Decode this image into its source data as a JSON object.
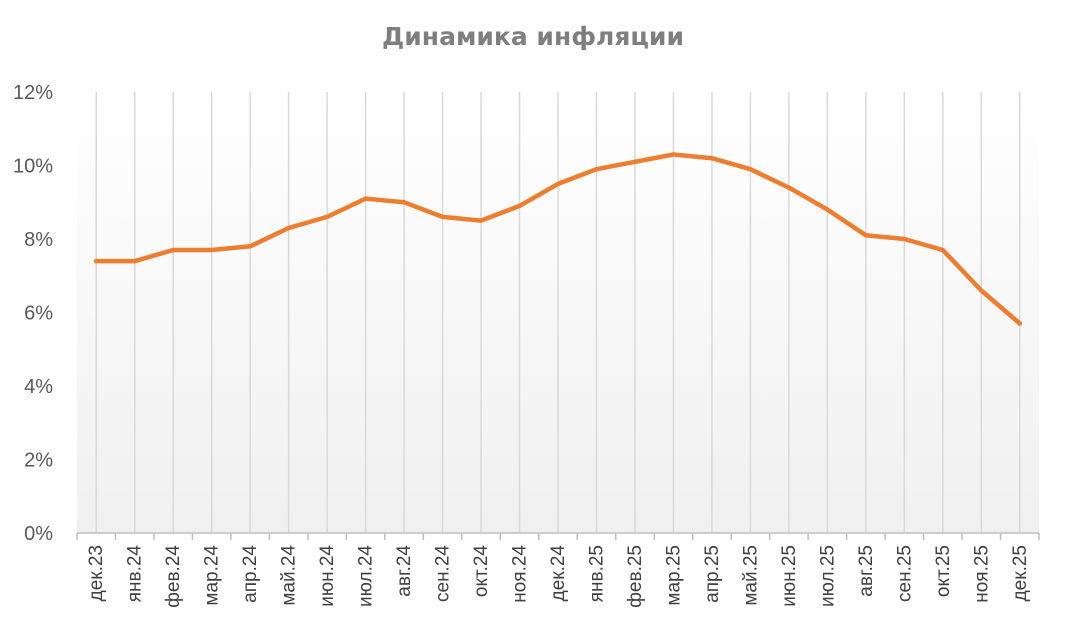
{
  "chart_data": {
    "type": "line",
    "title": "Динамика инфляции",
    "xlabel": "",
    "ylabel": "",
    "categories": [
      "дек.23",
      "янв.24",
      "фев.24",
      "мар.24",
      "апр.24",
      "май.24",
      "июн.24",
      "июл.24",
      "авг.24",
      "сен.24",
      "окт.24",
      "ноя.24",
      "дек.24",
      "янв.25",
      "фев.25",
      "мар.25",
      "апр.25",
      "май.25",
      "июн.25",
      "июл.25",
      "авг.25",
      "сен.25",
      "окт.25",
      "ноя.25",
      "дек.25"
    ],
    "series": [
      {
        "values": [
          7.4,
          7.4,
          7.7,
          7.7,
          7.8,
          8.3,
          8.6,
          9.1,
          9.0,
          8.6,
          8.5,
          8.9,
          9.5,
          9.9,
          10.1,
          10.3,
          10.2,
          9.9,
          9.4,
          8.8,
          8.1,
          8.0,
          7.7,
          6.6,
          5.7
        ],
        "color": "#ed7d31"
      }
    ],
    "ylim": [
      0,
      12
    ],
    "yticks": [
      0,
      2,
      4,
      6,
      8,
      10,
      12
    ],
    "ytick_format": "percent",
    "grid": "vertical",
    "legend": "none"
  }
}
